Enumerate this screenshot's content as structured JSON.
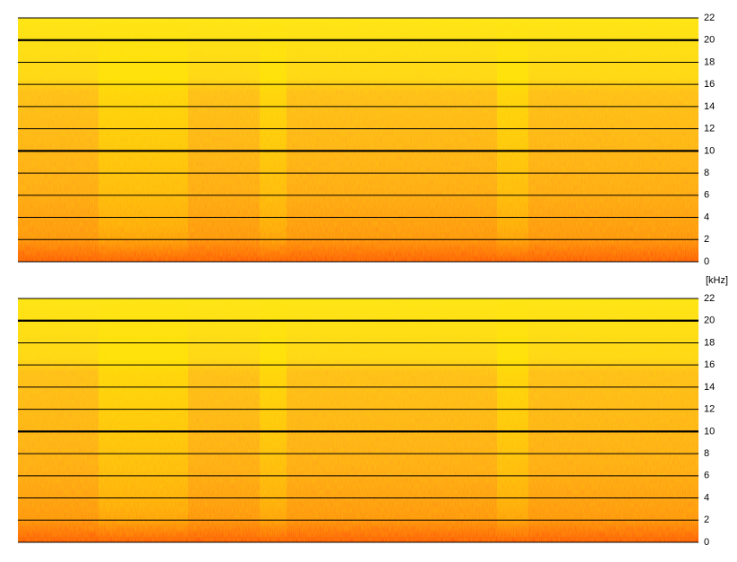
{
  "chart_data": [
    {
      "type": "spectrogram",
      "ylim": [
        0,
        22
      ],
      "yticks": [
        0,
        2,
        4,
        6,
        8,
        10,
        12,
        14,
        16,
        18,
        20,
        22
      ],
      "grid": true,
      "bold_gridlines": [
        10,
        20
      ]
    },
    {
      "type": "spectrogram",
      "ylabel": "[kHz]",
      "ylim": [
        0,
        22
      ],
      "yticks": [
        0,
        2,
        4,
        6,
        8,
        10,
        12,
        14,
        16,
        18,
        20,
        22
      ],
      "grid": true,
      "bold_gridlines": [
        10,
        20
      ]
    }
  ]
}
